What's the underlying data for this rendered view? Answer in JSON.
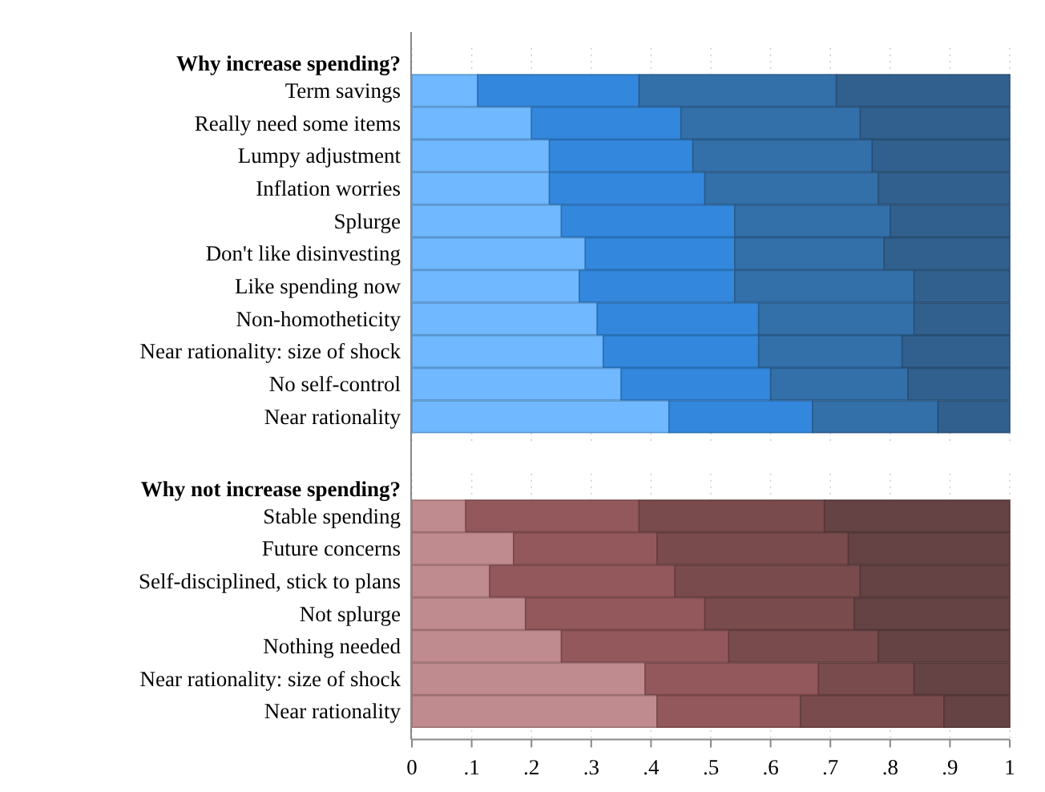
{
  "chart_data": [
    {
      "type": "bar",
      "title": "Why increase spending?",
      "orientation": "horizontal",
      "stacked": true,
      "grid": "x",
      "tick_labels": "y",
      "xlim": [
        0,
        1
      ],
      "xticks": [
        {
          "value": 0,
          "label": null
        },
        {
          "value": 0.1,
          "label": null
        },
        {
          "value": 0.2,
          "label": null
        },
        {
          "value": 0.3,
          "label": null
        },
        {
          "value": 0.4,
          "label": null
        },
        {
          "value": 0.5,
          "label": null
        },
        {
          "value": 0.6,
          "label": null
        },
        {
          "value": 0.7,
          "label": null
        },
        {
          "value": 0.8,
          "label": null
        },
        {
          "value": 0.9,
          "label": null
        },
        {
          "value": 1,
          "label": null
        }
      ],
      "categories": [
        "Term savings",
        "Really need some items",
        "Lumpy adjustment",
        "Inflation worries",
        "Splurge",
        "Don't like disinvesting",
        "Like spending now",
        "Non-homotheticity",
        "Near rationality: size of shock",
        "No self-control",
        "Near rationality"
      ],
      "series": [
        {
          "color": "#70b8ff",
          "values": [
            0.11,
            0.2,
            0.23,
            0.23,
            0.25,
            0.29,
            0.28,
            0.31,
            0.32,
            0.35,
            0.43
          ]
        },
        {
          "color": "#3388dd",
          "values": [
            0.27,
            0.25,
            0.24,
            0.26,
            0.29,
            0.25,
            0.26,
            0.27,
            0.26,
            0.25,
            0.24
          ]
        },
        {
          "color": "#3370aa",
          "values": [
            0.33,
            0.3,
            0.3,
            0.29,
            0.26,
            0.25,
            0.3,
            0.26,
            0.24,
            0.23,
            0.21
          ]
        },
        {
          "color": "#31608f",
          "values": [
            0.29,
            0.25,
            0.23,
            0.22,
            0.2,
            0.21,
            0.16,
            0.16,
            0.18,
            0.17,
            0.12
          ]
        }
      ]
    },
    {
      "type": "bar",
      "title": "Why not increase spending?",
      "orientation": "horizontal",
      "stacked": true,
      "grid": "x",
      "xlim": [
        0,
        1
      ],
      "xticks": [
        0,
        {
          "value": 0.1,
          "label": ".1"
        },
        {
          "value": 0.2,
          "label": ".2"
        },
        {
          "value": 0.3,
          "label": ".3"
        },
        {
          "value": 0.4,
          "label": ".4"
        },
        {
          "value": 0.5,
          "label": ".5"
        },
        {
          "value": 0.6,
          "label": ".6"
        },
        {
          "value": 0.7,
          "label": ".7"
        },
        {
          "value": 0.8,
          "label": ".8"
        },
        {
          "value": 0.9,
          "label": ".9"
        },
        1
      ],
      "categories": [
        "Stable spending",
        "Future concerns",
        "Self-disciplined, stick to plans",
        "Not splurge",
        "Nothing needed",
        "Near rationality: size of shock",
        "Near rationality"
      ],
      "series": [
        {
          "color": "#c08b8e",
          "values": [
            0.09,
            0.17,
            0.13,
            0.19,
            0.25,
            0.39,
            0.41
          ]
        },
        {
          "color": "#93585b",
          "values": [
            0.29,
            0.24,
            0.31,
            0.3,
            0.28,
            0.29,
            0.24
          ]
        },
        {
          "color": "#7a4b4d",
          "values": [
            0.31,
            0.32,
            0.31,
            0.25,
            0.25,
            0.16,
            0.24
          ]
        },
        {
          "color": "#654345",
          "values": [
            0.31,
            0.27,
            0.25,
            0.26,
            0.22,
            0.16,
            0.11
          ]
        }
      ]
    }
  ]
}
